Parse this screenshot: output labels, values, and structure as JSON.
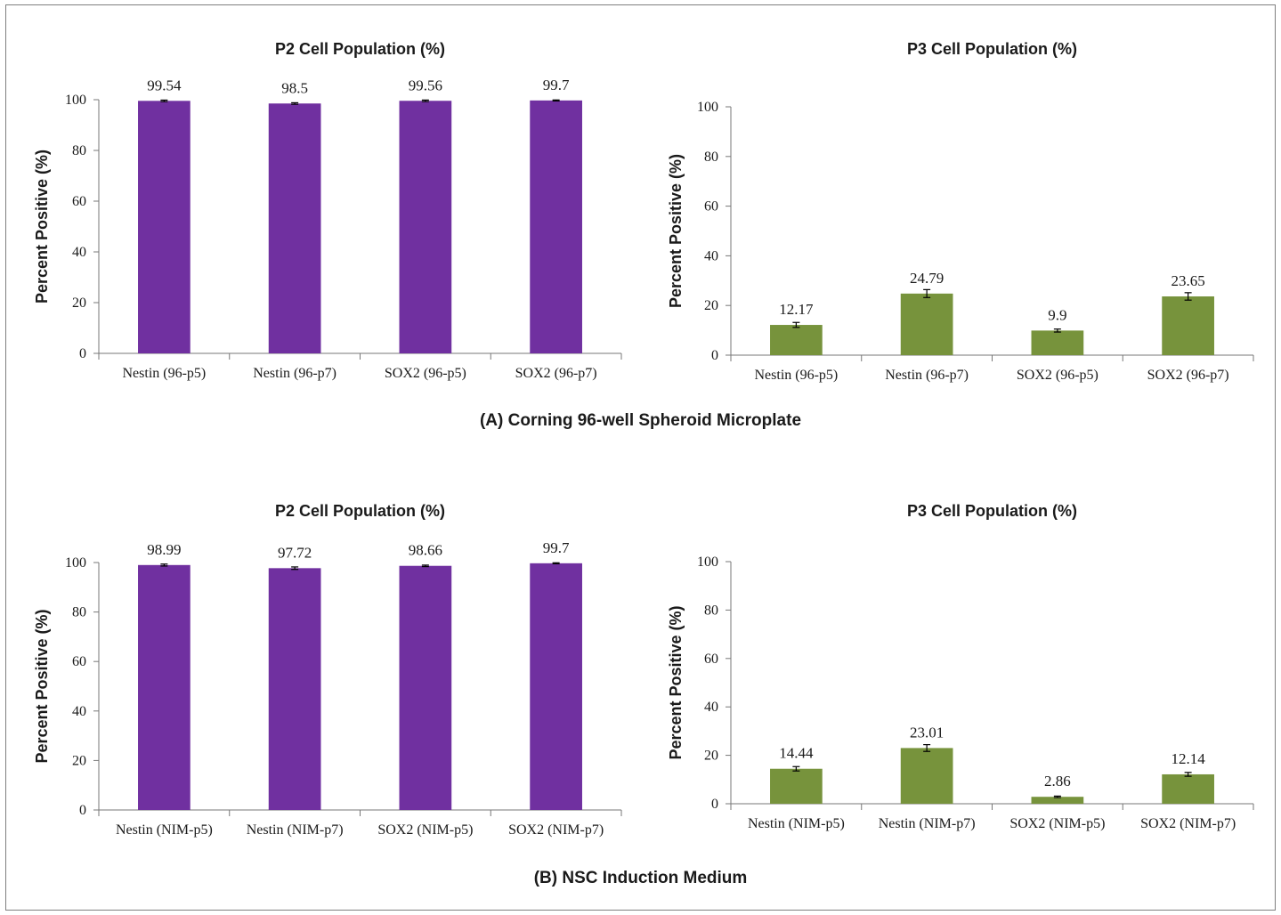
{
  "panels": [
    {
      "caption": "(A) Corning 96-well Spheroid Microplate"
    },
    {
      "caption": "(B) NSC Induction Medium"
    }
  ],
  "chart_data": [
    {
      "type": "bar",
      "panel": "A",
      "title": "P2 Cell Population (%)",
      "ylabel": "Percent Positive (%)",
      "xlabel": "",
      "ylim": [
        0,
        100
      ],
      "yticks": [
        0,
        20,
        40,
        60,
        80,
        100
      ],
      "categories": [
        "Nestin (96-p5)",
        "Nestin (96-p7)",
        "SOX2 (96-p5)",
        "SOX2 (96-p7)"
      ],
      "values": [
        99.54,
        98.5,
        99.56,
        99.7
      ],
      "labels": [
        "99.54",
        "98.5",
        "99.56",
        "99.7"
      ],
      "errors": [
        0.3,
        0.3,
        0.3,
        0.2
      ],
      "color": "#7030a0",
      "legend": "none",
      "grid": false
    },
    {
      "type": "bar",
      "panel": "A",
      "title": "P3 Cell Population (%)",
      "ylabel": "Percent Positive (%)",
      "xlabel": "",
      "ylim": [
        0,
        100
      ],
      "yticks": [
        0,
        20,
        40,
        60,
        80,
        100
      ],
      "categories": [
        "Nestin (96-p5)",
        "Nestin (96-p7)",
        "SOX2 (96-p5)",
        "SOX2 (96-p7)"
      ],
      "values": [
        12.17,
        24.79,
        9.9,
        23.65
      ],
      "labels": [
        "12.17",
        "24.79",
        "9.9",
        "23.65"
      ],
      "errors": [
        1.0,
        1.6,
        0.6,
        1.5
      ],
      "color": "#77933c",
      "legend": "none",
      "grid": false
    },
    {
      "type": "bar",
      "panel": "B",
      "title": "P2 Cell Population (%)",
      "ylabel": "Percent Positive (%)",
      "xlabel": "",
      "ylim": [
        0,
        100
      ],
      "yticks": [
        0,
        20,
        40,
        60,
        80,
        100
      ],
      "categories": [
        "Nestin (NIM-p5)",
        "Nestin (NIM-p7)",
        "SOX2 (NIM-p5)",
        "SOX2 (NIM-p7)"
      ],
      "values": [
        98.99,
        97.72,
        98.66,
        99.7
      ],
      "labels": [
        "98.99",
        "97.72",
        "98.66",
        "99.7"
      ],
      "errors": [
        0.4,
        0.5,
        0.3,
        0.2
      ],
      "color": "#7030a0",
      "legend": "none",
      "grid": false
    },
    {
      "type": "bar",
      "panel": "B",
      "title": "P3 Cell Population (%)",
      "ylabel": "Percent Positive (%)",
      "xlabel": "",
      "ylim": [
        0,
        100
      ],
      "yticks": [
        0,
        20,
        40,
        60,
        80,
        100
      ],
      "categories": [
        "Nestin (NIM-p5)",
        "Nestin (NIM-p7)",
        "SOX2 (NIM-p5)",
        "SOX2 (NIM-p7)"
      ],
      "values": [
        14.44,
        23.01,
        2.86,
        12.14
      ],
      "labels": [
        "14.44",
        "23.01",
        "2.86",
        "12.14"
      ],
      "errors": [
        0.9,
        1.4,
        0.3,
        0.8
      ],
      "color": "#77933c",
      "legend": "none",
      "grid": false
    }
  ]
}
